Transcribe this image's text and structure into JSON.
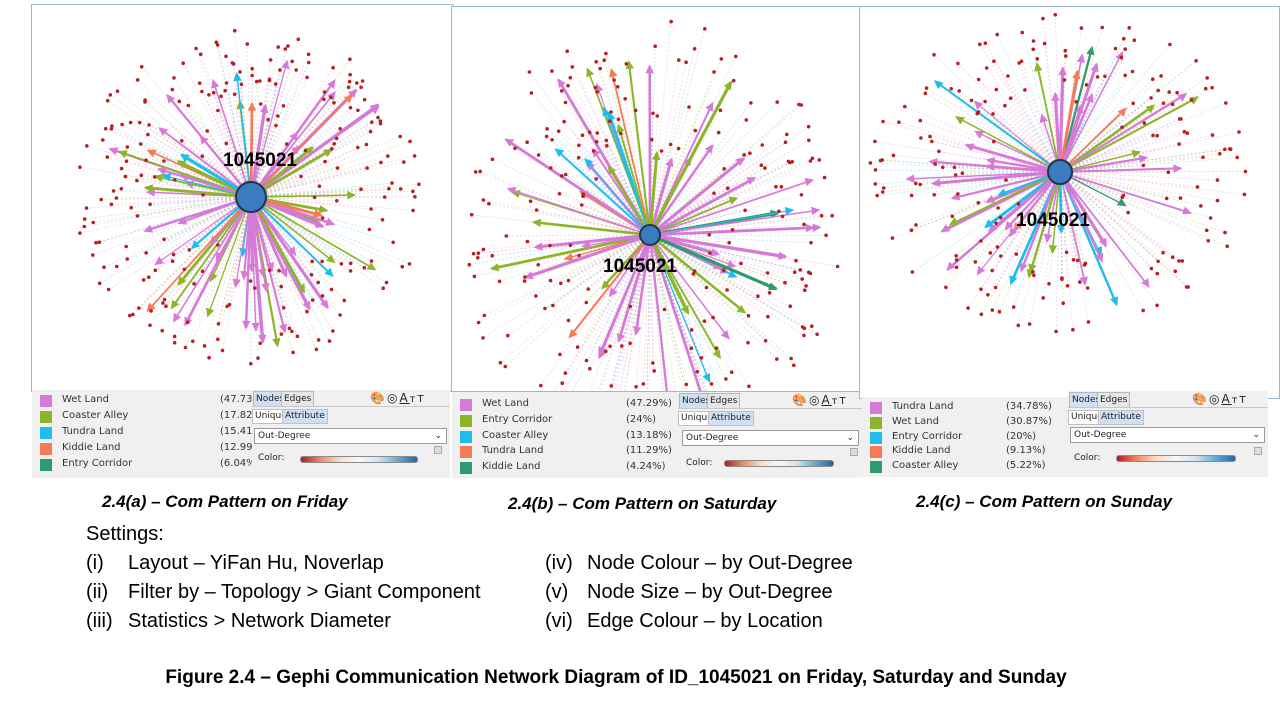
{
  "panels": [
    {
      "id": "a",
      "hub_label": "1045021",
      "caption": "2.4(a) – Com Pattern on Friday",
      "legend": [
        {
          "name": "Wet Land",
          "pct": "(47.73%",
          "color": "#d67ad8"
        },
        {
          "name": "Coaster Alley",
          "pct": "(17.82%",
          "color": "#8db52a"
        },
        {
          "name": "Tundra Land",
          "pct": "(15.41%",
          "color": "#1fbdee"
        },
        {
          "name": "Kiddie Land",
          "pct": "(12.99%",
          "color": "#f57a58"
        },
        {
          "name": "Entry Corridor",
          "pct": "(6.04%",
          "color": "#2e9a6e"
        }
      ]
    },
    {
      "id": "b",
      "hub_label": "1045021",
      "caption": "2.4(b) – Com Pattern on Saturday",
      "legend": [
        {
          "name": "Wet Land",
          "pct": "(47.29%)",
          "color": "#d67ad8"
        },
        {
          "name": "Entry Corridor",
          "pct": "(24%)",
          "color": "#8db52a"
        },
        {
          "name": "Coaster Alley",
          "pct": "(13.18%)",
          "color": "#1fbdee"
        },
        {
          "name": "Tundra Land",
          "pct": "(11.29%)",
          "color": "#f57a58"
        },
        {
          "name": "Kiddie Land",
          "pct": "(4.24%)",
          "color": "#2e9a6e"
        }
      ]
    },
    {
      "id": "c",
      "hub_label": "1045021",
      "caption": "2.4(c) – Com Pattern on Sunday",
      "legend": [
        {
          "name": "Tundra Land",
          "pct": "(34.78%)",
          "color": "#d67ad8"
        },
        {
          "name": "Wet Land",
          "pct": "(30.87%)",
          "color": "#8db52a"
        },
        {
          "name": "Entry Corridor",
          "pct": "(20%)",
          "color": "#1fbdee"
        },
        {
          "name": "Kiddie Land",
          "pct": "(9.13%)",
          "color": "#f57a58"
        },
        {
          "name": "Coaster Alley",
          "pct": "(5.22%)",
          "color": "#2e9a6e"
        }
      ]
    }
  ],
  "controls": {
    "tab_nodes": "Nodes",
    "tab_edges": "Edges",
    "subtab_unique": "Unique",
    "subtab_attribute": "Attribute",
    "dropdown_value": "Out-Degree",
    "color_label": "Color:",
    "tool_icons": [
      "palette-icon",
      "size-icon",
      "label-color-icon",
      "label-size-icon"
    ]
  },
  "node_color": "#b52022",
  "hub_color": "#3a7cbf",
  "settings": {
    "heading": "Settings:",
    "left": [
      {
        "num": "(i)",
        "text": "Layout – YiFan Hu, Noverlap"
      },
      {
        "num": "(ii)",
        "text": "Filter by – Topology > Giant Component"
      },
      {
        "num": "(iii)",
        "text": "Statistics > Network Diameter"
      }
    ],
    "right": [
      {
        "num": "(iv)",
        "text": "Node Colour – by Out-Degree"
      },
      {
        "num": "(v)",
        "text": "Node Size – by Out-Degree"
      },
      {
        "num": "(vi)",
        "text": "Edge Colour – by Location"
      }
    ]
  },
  "figure_title": "Figure 2.4 – Gephi Communication Network Diagram of ID_1045021 on Friday, Saturday and Sunday"
}
